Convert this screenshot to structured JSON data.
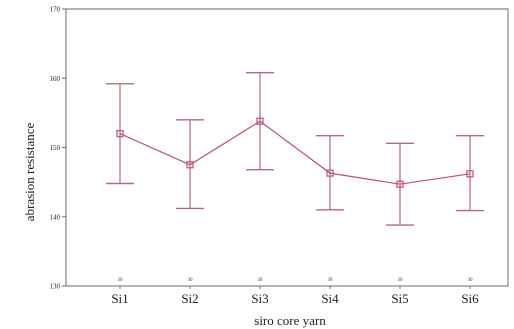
{
  "chart_data": {
    "type": "line",
    "title": "",
    "xlabel": "siro core yarn",
    "ylabel": "abrasion resistance",
    "categories": [
      "Si1",
      "Si2",
      "Si3",
      "Si4",
      "Si5",
      "Si6"
    ],
    "n_labels": [
      "30",
      "30",
      "30",
      "30",
      "30",
      "30"
    ],
    "series": [
      {
        "values": [
          152,
          147.5,
          153.8,
          146.3,
          144.7,
          146.2
        ],
        "lower": [
          144.8,
          141.2,
          146.8,
          141.0,
          138.8,
          140.9
        ],
        "upper": [
          159.2,
          154.0,
          160.8,
          151.7,
          150.6,
          151.7
        ]
      }
    ],
    "ylim": [
      130,
      170
    ],
    "yticks": [
      130,
      140,
      150,
      160,
      170
    ],
    "grid": false,
    "legend": "none",
    "colors": {
      "series": "#c0506e",
      "errorbar": "#b86a72",
      "axis": "#6b6b6b"
    }
  }
}
